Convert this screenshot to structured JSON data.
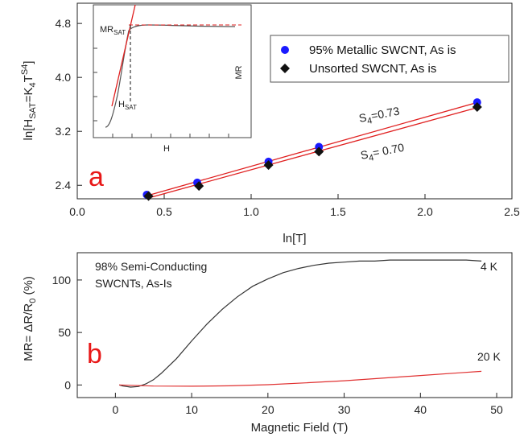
{
  "chart_data": [
    {
      "type": "scatter",
      "panel_label": "a",
      "xlabel": "ln[T]",
      "ylabel": "ln[H_SAT=K_4T^S4]",
      "xlim": [
        0.0,
        2.5
      ],
      "ylim": [
        2.2,
        5.1
      ],
      "xticks": [
        "0.0",
        "0.5",
        "1.0",
        "1.5",
        "2.0",
        "2.5"
      ],
      "yticks": [
        "2.4",
        "3.2",
        "4.0",
        "4.8"
      ],
      "series": [
        {
          "name": "95% Metallic SWCNT, As is",
          "marker": "circle",
          "color": "#1a1aff",
          "x": [
            0.4,
            0.69,
            1.1,
            1.39,
            2.3
          ],
          "y": [
            2.26,
            2.44,
            2.75,
            2.97,
            3.63
          ],
          "fit_slope_label": "S4=0.73"
        },
        {
          "name": "Unsorted SWCNT, As is",
          "marker": "diamond",
          "color": "#111111",
          "x": [
            0.41,
            0.7,
            1.1,
            1.39,
            2.3
          ],
          "y": [
            2.24,
            2.39,
            2.7,
            2.9,
            3.56
          ],
          "fit_slope_label": "S4= 0.70"
        }
      ],
      "fit_color": "#e02020",
      "inset": {
        "xlabel": "H",
        "ylabel": "MR",
        "labels": [
          "MR_SAT",
          "H_SAT"
        ]
      }
    },
    {
      "type": "line",
      "panel_label": "b",
      "xlabel": "Magnetic Field (T)",
      "ylabel": "MR= ΔR/R0 (%)",
      "xlim": [
        -5,
        52
      ],
      "ylim": [
        -12,
        126
      ],
      "xticks": [
        "0",
        "10",
        "20",
        "30",
        "40",
        "50"
      ],
      "yticks": [
        "0",
        "50",
        "100"
      ],
      "annotation": [
        "98% Semi-Conducting",
        "SWCNTs, As-Is"
      ],
      "series": [
        {
          "name": "4 K",
          "color": "#333333",
          "x": [
            0.5,
            1,
            2,
            3,
            4,
            5,
            6,
            8,
            10,
            12,
            14,
            16,
            18,
            20,
            22,
            24,
            26,
            28,
            30,
            32,
            34,
            36,
            38,
            40,
            42,
            44,
            46,
            48
          ],
          "y": [
            0,
            -1,
            -2,
            -1.5,
            1,
            5,
            11,
            25,
            42,
            58,
            72,
            84,
            94,
            101,
            107,
            111,
            114,
            116,
            117,
            118,
            118,
            119,
            119,
            119,
            119,
            119,
            119,
            118
          ]
        },
        {
          "name": "20 K",
          "color": "#e03030",
          "x": [
            0.5,
            5,
            10,
            15,
            20,
            25,
            30,
            35,
            40,
            45,
            48
          ],
          "y": [
            0,
            -1,
            -1.2,
            -0.8,
            0.3,
            2,
            4,
            6.5,
            9,
            11.5,
            13
          ]
        }
      ]
    }
  ]
}
